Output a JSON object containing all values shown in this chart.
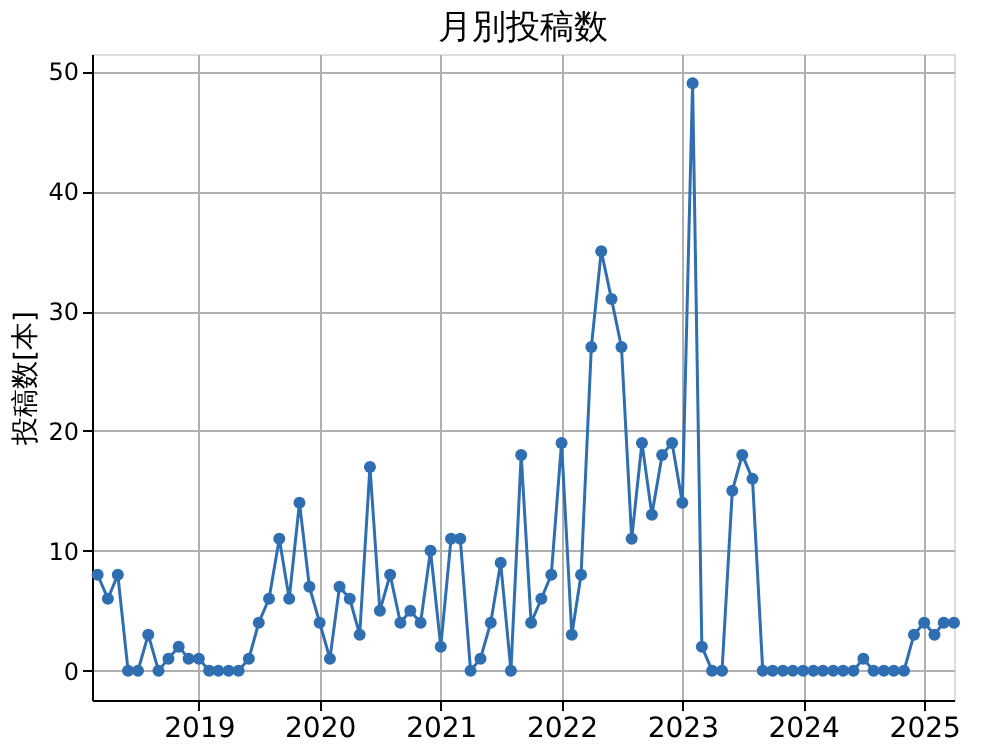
{
  "chart_data": {
    "type": "line",
    "title": "月別投稿数",
    "ylabel": "投稿数[本]",
    "x": [
      "2018-03",
      "2018-04",
      "2018-05",
      "2018-06",
      "2018-07",
      "2018-08",
      "2018-09",
      "2018-10",
      "2018-11",
      "2018-12",
      "2019-01",
      "2019-02",
      "2019-03",
      "2019-04",
      "2019-05",
      "2019-06",
      "2019-07",
      "2019-08",
      "2019-09",
      "2019-10",
      "2019-11",
      "2019-12",
      "2020-01",
      "2020-02",
      "2020-03",
      "2020-04",
      "2020-05",
      "2020-06",
      "2020-07",
      "2020-08",
      "2020-09",
      "2020-10",
      "2020-11",
      "2020-12",
      "2021-01",
      "2021-02",
      "2021-03",
      "2021-04",
      "2021-05",
      "2021-06",
      "2021-07",
      "2021-08",
      "2021-09",
      "2021-10",
      "2021-11",
      "2021-12",
      "2022-01",
      "2022-02",
      "2022-03",
      "2022-04",
      "2022-05",
      "2022-06",
      "2022-07",
      "2022-08",
      "2022-09",
      "2022-10",
      "2022-11",
      "2022-12",
      "2023-01",
      "2023-02",
      "2023-03",
      "2023-04",
      "2023-05",
      "2023-06",
      "2023-07",
      "2023-08",
      "2023-09",
      "2023-10",
      "2023-11",
      "2023-12",
      "2024-01",
      "2024-02",
      "2024-03",
      "2024-04",
      "2024-05",
      "2024-06",
      "2024-07",
      "2024-08",
      "2024-09",
      "2024-10",
      "2024-11",
      "2024-12",
      "2025-01",
      "2025-02",
      "2025-03",
      "2025-04"
    ],
    "series": [
      {
        "color": "#2f6eb0",
        "values": [
          8,
          6,
          8,
          0,
          0,
          3,
          0,
          1,
          2,
          1,
          1,
          0,
          0,
          0,
          0,
          1,
          4,
          6,
          11,
          6,
          14,
          7,
          4,
          1,
          7,
          6,
          3,
          17,
          5,
          8,
          4,
          5,
          4,
          10,
          2,
          11,
          11,
          0,
          1,
          4,
          9,
          0,
          18,
          4,
          6,
          8,
          19,
          3,
          8,
          27,
          35,
          31,
          27,
          11,
          19,
          13,
          18,
          19,
          14,
          49,
          2,
          0,
          0,
          15,
          18,
          16,
          0,
          0,
          0,
          0,
          0,
          0,
          0,
          0,
          0,
          0,
          1,
          0,
          0,
          0,
          0,
          3,
          4,
          3,
          4,
          4
        ]
      }
    ],
    "xlim": [
      "2018-02-12",
      "2025-04-01"
    ],
    "ylim": [
      -2.45,
      51.45
    ],
    "xticks": [
      {
        "value": "2019-01",
        "label": "2019"
      },
      {
        "value": "2020-01",
        "label": "2020"
      },
      {
        "value": "2021-01",
        "label": "2021"
      },
      {
        "value": "2022-01",
        "label": "2022"
      },
      {
        "value": "2023-01",
        "label": "2023"
      },
      {
        "value": "2024-01",
        "label": "2024"
      },
      {
        "value": "2025-01",
        "label": "2025"
      }
    ],
    "yticks": [
      0,
      10,
      20,
      30,
      40,
      50
    ],
    "grid": true,
    "marker": "circle",
    "line_style": "solid"
  }
}
